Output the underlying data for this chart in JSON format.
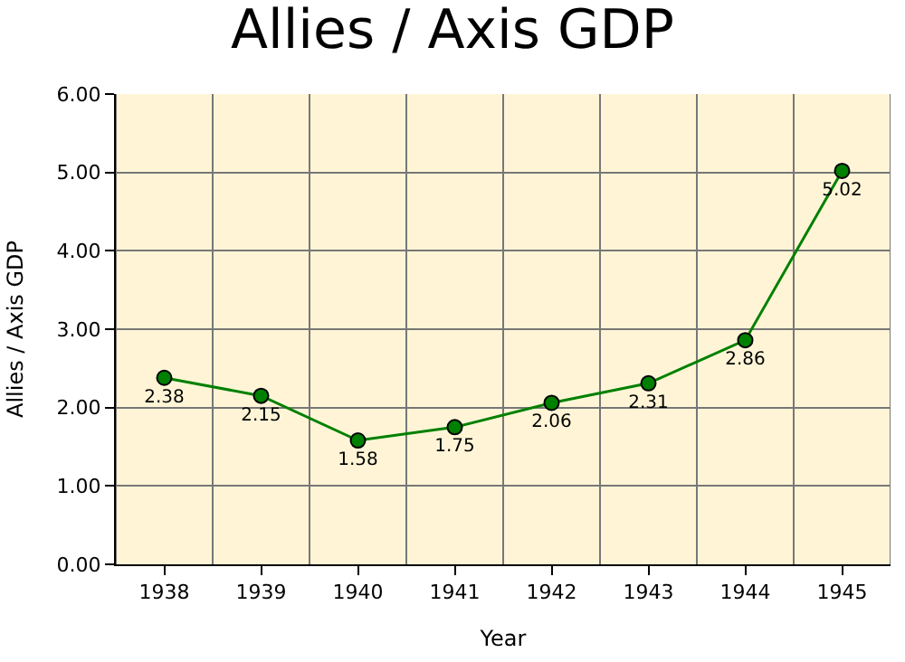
{
  "chart_data": {
    "type": "line",
    "title": "Allies / Axis GDP",
    "xlabel": "Year",
    "ylabel": "Allies / Axis GDP",
    "categories": [
      "1938",
      "1939",
      "1940",
      "1941",
      "1942",
      "1943",
      "1944",
      "1945"
    ],
    "series": [
      {
        "color": "#008000",
        "values": [
          2.38,
          2.15,
          1.58,
          1.75,
          2.06,
          2.31,
          2.86,
          5.02
        ]
      }
    ],
    "ylim": [
      0,
      6
    ],
    "yticks": [
      {
        "value": 0,
        "label": "0.00"
      },
      {
        "value": 1,
        "label": "1.00"
      },
      {
        "value": 2,
        "label": "2.00"
      },
      {
        "value": 3,
        "label": "3.00"
      },
      {
        "value": 4,
        "label": "4.00"
      },
      {
        "value": 5,
        "label": "5.00"
      },
      {
        "value": 6,
        "label": "6.00"
      }
    ],
    "grid": true,
    "marker": "circle",
    "line_style": "solid",
    "data_labels": true
  }
}
